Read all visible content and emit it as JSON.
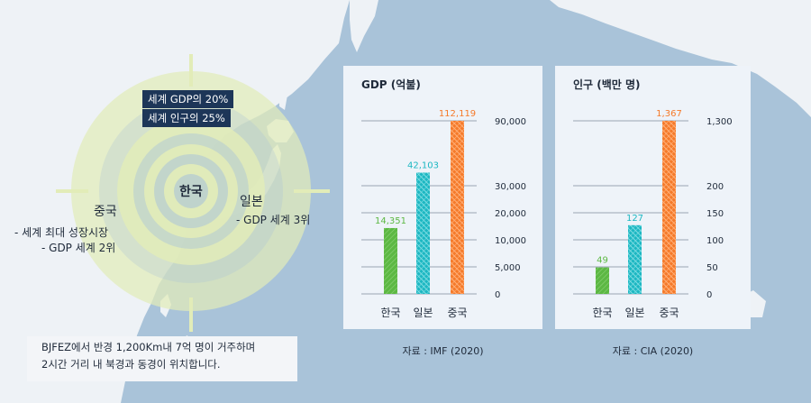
{
  "colors": {
    "sea": "#a9c3d9",
    "land": "#eef2f6",
    "ring": "#e3ecc0",
    "panel": "#eef3f9",
    "badge": "#1d3658",
    "korea": "#5cb843",
    "japan": "#1cb7c2",
    "china": "#f57a2a"
  },
  "map": {
    "badges": [
      "세계 GDP의 20%",
      "세계 인구의 25%"
    ],
    "korea_label": "한국",
    "china": {
      "name": "중국",
      "notes": [
        "- 세계 최대 성장시장",
        "- GDP 세계 2위"
      ]
    },
    "japan": {
      "name": "일본",
      "notes": [
        "- GDP 세계 3위"
      ]
    },
    "description": [
      "BJFEZ에서 반경 1,200Km내 7억 명이 거주하며",
      "2시간 거리 내 북경과 동경이 위치합니다."
    ]
  },
  "chart_data": [
    {
      "type": "bar",
      "title": "GDP (억불)",
      "categories": [
        "한국",
        "일본",
        "중국"
      ],
      "values": [
        14351,
        42103,
        112119
      ],
      "value_labels": [
        "14,351",
        "42,103",
        "112,119"
      ],
      "y_ticks": [
        0,
        5000,
        10000,
        20000,
        30000,
        90000
      ],
      "y_tick_labels": [
        "0",
        "5,000",
        "10,000",
        "20,000",
        "30,000",
        "90,000"
      ],
      "axis_break": "scale compressed above 30,000",
      "source": "자료 : IMF (2020)",
      "grid": true,
      "colors": [
        "#5cb843",
        "#1cb7c2",
        "#f57a2a"
      ]
    },
    {
      "type": "bar",
      "title": "인구 (백만 명)",
      "categories": [
        "한국",
        "일본",
        "중국"
      ],
      "values": [
        49,
        127,
        1367
      ],
      "value_labels": [
        "49",
        "127",
        "1,367"
      ],
      "y_ticks": [
        0,
        50,
        100,
        150,
        200,
        1300
      ],
      "y_tick_labels": [
        "0",
        "50",
        "100",
        "150",
        "200",
        "1,300"
      ],
      "axis_break": "scale compressed above 200",
      "source": "자료 : CIA (2020)",
      "grid": true,
      "colors": [
        "#5cb843",
        "#1cb7c2",
        "#f57a2a"
      ]
    }
  ]
}
